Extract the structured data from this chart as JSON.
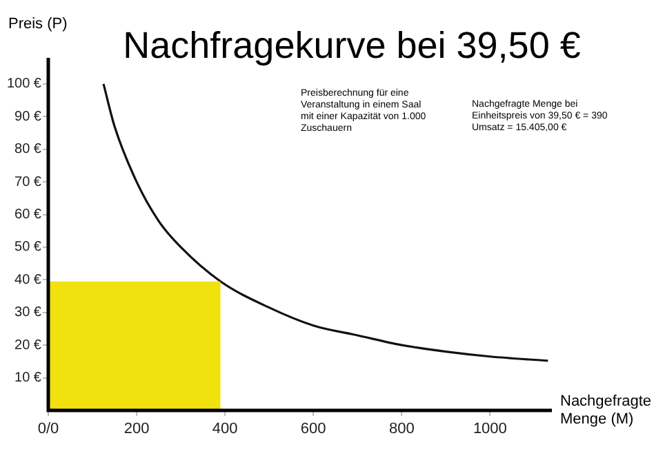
{
  "chart_data": {
    "type": "line",
    "title": "Nachfragekurve bei 39,50 €",
    "xlabel": "Nachgefragte\nMenge (M)",
    "ylabel": "Preis (P)",
    "annotations": [
      "Preisberechnung für eine\nVeranstaltung in einem Saal\nmit einer Kapazität von 1.000\nZuschauern",
      "Nachgefragte Menge bei\nEinheitspreis von 39,50 € = 390\nUmsatz = 15.405,00 €"
    ],
    "series": [
      {
        "type": "area",
        "color": "#f0e10f",
        "x": [
          0,
          390
        ],
        "values": [
          39.5,
          39.5
        ]
      },
      {
        "color": "#111111",
        "x": [
          125,
          150,
          200,
          250,
          300,
          390,
          500,
          600,
          700,
          800,
          900,
          1000,
          1131
        ],
        "values": [
          100,
          87,
          70,
          58,
          50,
          39.5,
          31.5,
          26,
          23,
          20,
          18,
          16.5,
          15.2
        ]
      }
    ],
    "xlim": [
      0,
      1140
    ],
    "ylim": [
      0,
      108
    ],
    "xticks": [
      {
        "value": 0,
        "label": "0/0"
      },
      200,
      400,
      600,
      800,
      1000
    ],
    "yticks": [
      {
        "value": 10,
        "label": "10 €"
      },
      {
        "value": 20,
        "label": "20 €"
      },
      {
        "value": 30,
        "label": "30 €"
      },
      {
        "value": 40,
        "label": "40 €"
      },
      {
        "value": 50,
        "label": "50 €"
      },
      {
        "value": 60,
        "label": "60 €"
      },
      {
        "value": 70,
        "label": "70 €"
      },
      {
        "value": 80,
        "label": "80 €"
      },
      {
        "value": 90,
        "label": "90 €"
      },
      {
        "value": 100,
        "label": "100 €"
      }
    ],
    "grid": false,
    "legend": false,
    "marker": "none",
    "line_style": "solid"
  }
}
